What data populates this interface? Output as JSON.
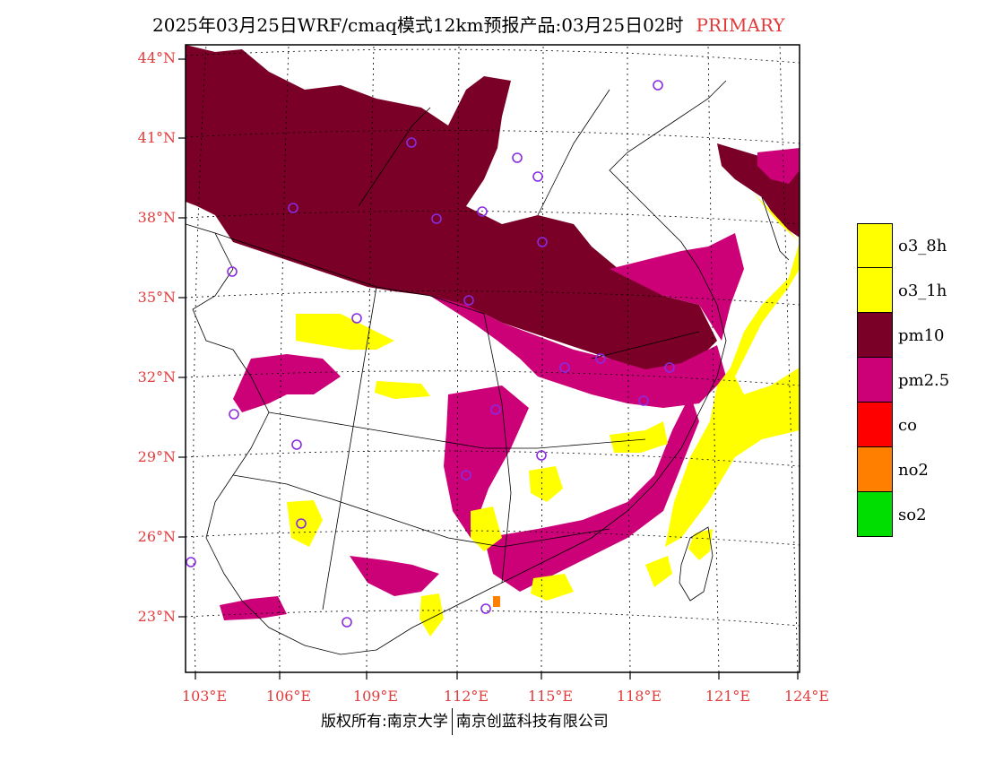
{
  "title": {
    "text": "2025年03月25日WRF/cmaq模式12km预报产品:03月25日02时",
    "tag": "PRIMARY",
    "tag_color": "#e23b3b"
  },
  "map": {
    "lat_labels": [
      "44°N",
      "41°N",
      "38°N",
      "35°N",
      "32°N",
      "29°N",
      "26°N",
      "23°N"
    ],
    "lon_labels": [
      "103°E",
      "106°E",
      "109°E",
      "112°E",
      "115°E",
      "118°E",
      "121°E",
      "124°E"
    ],
    "label_color": "#e23b3b"
  },
  "legend": {
    "items": [
      {
        "label": "o3_8h",
        "color": "#ffff00"
      },
      {
        "label": "o3_1h",
        "color": "#ffff00"
      },
      {
        "label": "pm10",
        "color": "#7a0028"
      },
      {
        "label": "pm2.5",
        "color": "#cc0077"
      },
      {
        "label": "co",
        "color": "#ff0000"
      },
      {
        "label": "no2",
        "color": "#ff7f00"
      },
      {
        "label": "so2",
        "color": "#00dd00"
      }
    ]
  },
  "footer": {
    "left": "版权所有:南京大学",
    "right": "南京创蓝科技有限公司"
  }
}
